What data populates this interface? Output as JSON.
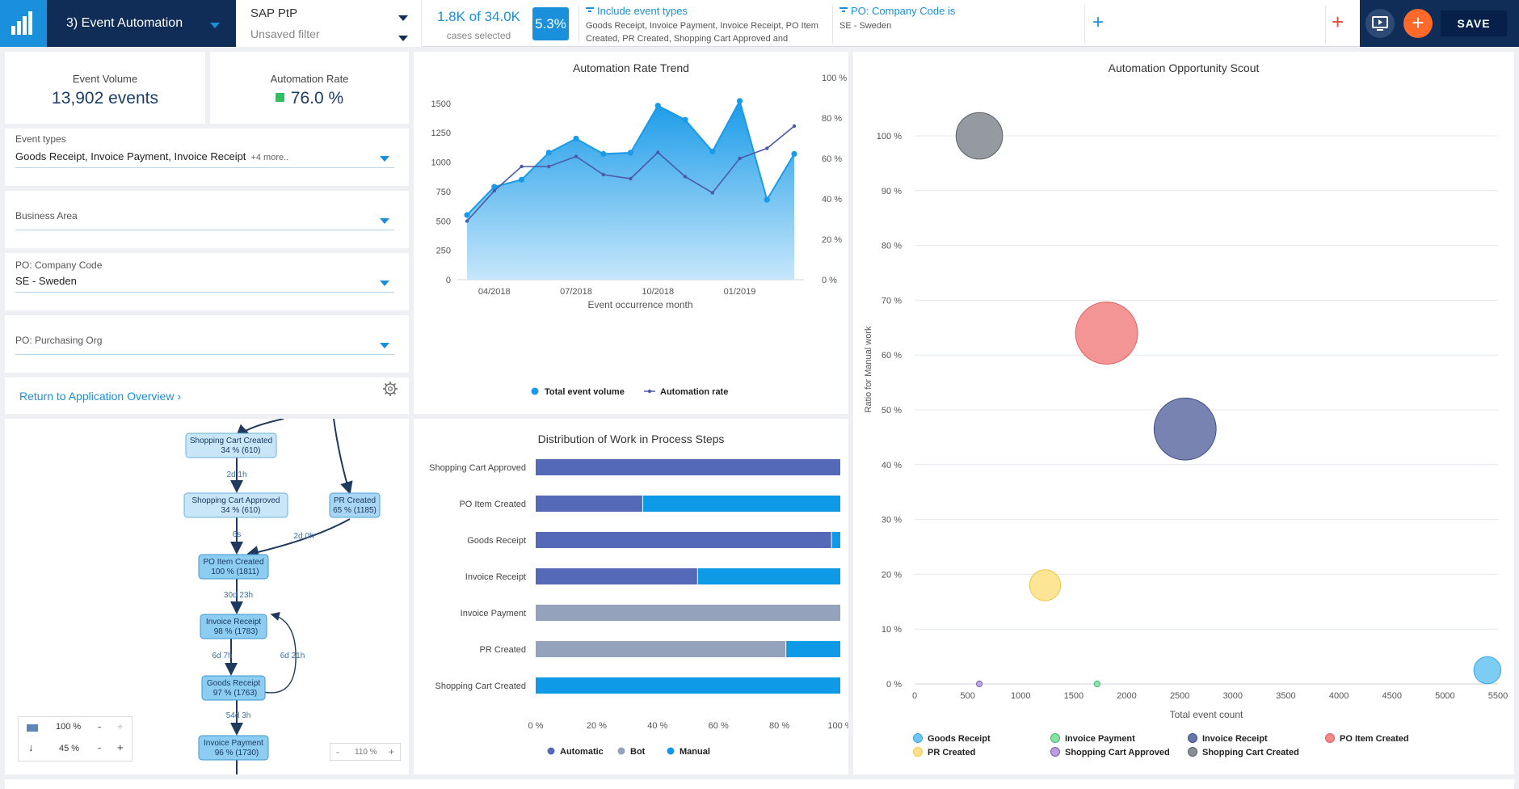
{
  "topbar": {
    "app_name": "3) Event Automation",
    "datasource": "SAP PtP",
    "filter_state": "Unsaved filter",
    "cases_count": "1.8K of 34.0K",
    "cases_label": "cases selected",
    "cases_pct": "5.3%",
    "filters": [
      {
        "title": "Include event types",
        "value": "Goods Receipt, Invoice Payment, Invoice Receipt, PO Item Created, PR Created, Shopping Cart Approved and"
      },
      {
        "title": "PO: Company Code is",
        "value": "SE - Sweden"
      }
    ],
    "add_filter_icon": "plus-icon",
    "save_label": "SAVE"
  },
  "kpis": {
    "event_volume_label": "Event Volume",
    "event_volume_value": "13,902 events",
    "automation_rate_label": "Automation Rate",
    "automation_rate_value": "76.0 %",
    "automation_rate_color": "#2fc060"
  },
  "dropdowns": [
    {
      "label": "Event types",
      "value": "Goods Receipt, Invoice Payment, Invoice Receipt",
      "more": "+4 more.."
    },
    {
      "label": "Business Area",
      "value": "",
      "more": ""
    },
    {
      "label": "PO: Company Code",
      "value": "SE - Sweden",
      "more": ""
    },
    {
      "label": "PO: Purchasing Org",
      "value": "",
      "more": ""
    }
  ],
  "return_link": "Return to Application Overview",
  "process_map": {
    "nodes": [
      {
        "name": "Shopping Cart Created",
        "stat": "34 % (610)"
      },
      {
        "name": "Shopping Cart Approved",
        "stat": "34 % (610)"
      },
      {
        "name": "PR Created",
        "stat": "65 % (1185)"
      },
      {
        "name": "PO Item Created",
        "stat": "100 % (1811)"
      },
      {
        "name": "Invoice Receipt",
        "stat": "98 % (1783)"
      },
      {
        "name": "Goods Receipt",
        "stat": "97 % (1763)"
      },
      {
        "name": "Invoice Payment",
        "stat": "96 % (1730)"
      }
    ],
    "edges": [
      "2d 1h",
      "6s",
      "2d 0h",
      "30d 23h",
      "6d 7h",
      "6d 21h",
      "54d 3h"
    ],
    "activity_slider": "100 %",
    "path_slider": "45 %",
    "zoom": "110 %"
  },
  "chart_data": [
    {
      "type": "area",
      "title": "Automation Rate Trend",
      "xlabel": "Event occurrence month",
      "x_tick_labels": [
        "04/2018",
        "07/2018",
        "10/2018",
        "01/2019"
      ],
      "y_left_ticks": [
        "0",
        "250",
        "500",
        "750",
        "1000",
        "1250",
        "1500"
      ],
      "y_right_ticks": [
        "0 %",
        "20 %",
        "40 %",
        "60 %",
        "80 %",
        "100 %"
      ],
      "ylim_left": [
        0,
        1650
      ],
      "ylim_right": [
        0,
        100
      ],
      "series": [
        {
          "name": "Total event volume",
          "axis": "left",
          "color": "#1a9be8",
          "values": [
            550,
            790,
            850,
            1080,
            1200,
            1070,
            1080,
            1480,
            1360,
            1090,
            1520,
            680,
            1070
          ]
        },
        {
          "name": "Automation rate",
          "axis": "right",
          "color": "#4a5aa8",
          "values": [
            29,
            44,
            56,
            56,
            61,
            52,
            50,
            63,
            51,
            43,
            60,
            65,
            76
          ]
        }
      ]
    },
    {
      "type": "bar",
      "stacked": true,
      "orientation": "horizontal",
      "title": "Distribution of Work in Process Steps",
      "categories": [
        "Shopping Cart Approved",
        "PO Item Created",
        "Goods Receipt",
        "Invoice Receipt",
        "Invoice Payment",
        "PR Created",
        "Shopping Cart Created"
      ],
      "x_tick_labels": [
        "0 %",
        "20 %",
        "40 %",
        "60 %",
        "80 %",
        "100 %"
      ],
      "xlim": [
        0,
        100
      ],
      "series": [
        {
          "name": "Automatic",
          "color": "#5469b8",
          "values": [
            100,
            35,
            97,
            53,
            0,
            0,
            0
          ]
        },
        {
          "name": "Bot",
          "color": "#94a3bb",
          "values": [
            0,
            0,
            0,
            0,
            100,
            82,
            0
          ]
        },
        {
          "name": "Manual",
          "color": "#0e9ae6",
          "values": [
            0,
            65,
            3,
            47,
            0,
            18,
            100
          ]
        }
      ]
    },
    {
      "type": "scatter",
      "bubble": true,
      "title": "Automation Opportunity Scout",
      "xlabel": "Total event count",
      "ylabel": "Ratio for Manual work",
      "x_tick_labels": [
        "0",
        "500",
        "1000",
        "1500",
        "2000",
        "2500",
        "3000",
        "3500",
        "4000",
        "4500",
        "5000",
        "5500"
      ],
      "y_tick_labels": [
        "0 %",
        "10 %",
        "20 %",
        "30 %",
        "40 %",
        "50 %",
        "60 %",
        "70 %",
        "80 %",
        "90 %",
        "100 %"
      ],
      "xlim": [
        0,
        5500
      ],
      "ylim": [
        0,
        100
      ],
      "points": [
        {
          "name": "Goods Receipt",
          "x": 5400,
          "y": 2.5,
          "size": 14,
          "color": "#6ec6f2",
          "stroke": "#3ba6e6"
        },
        {
          "name": "Invoice Payment",
          "x": 1720,
          "y": 0,
          "size": 3,
          "color": "#8ce0a6",
          "stroke": "#3cb66b"
        },
        {
          "name": "Invoice Receipt",
          "x": 2550,
          "y": 46.5,
          "size": 32,
          "color": "#6a76a8",
          "stroke": "#3f4e86"
        },
        {
          "name": "PO Item Created",
          "x": 1810,
          "y": 64,
          "size": 32,
          "color": "#f28a8a",
          "stroke": "#e05c5c"
        },
        {
          "name": "PR Created",
          "x": 1230,
          "y": 18,
          "size": 16,
          "color": "#fde28a",
          "stroke": "#f0c544"
        },
        {
          "name": "Shopping Cart Approved",
          "x": 610,
          "y": 0,
          "size": 3,
          "color": "#b89ee0",
          "stroke": "#7b5cc0"
        },
        {
          "name": "Shopping Cart Created",
          "x": 610,
          "y": 100,
          "size": 24,
          "color": "#8a8f96",
          "stroke": "#5c6168"
        }
      ]
    }
  ]
}
